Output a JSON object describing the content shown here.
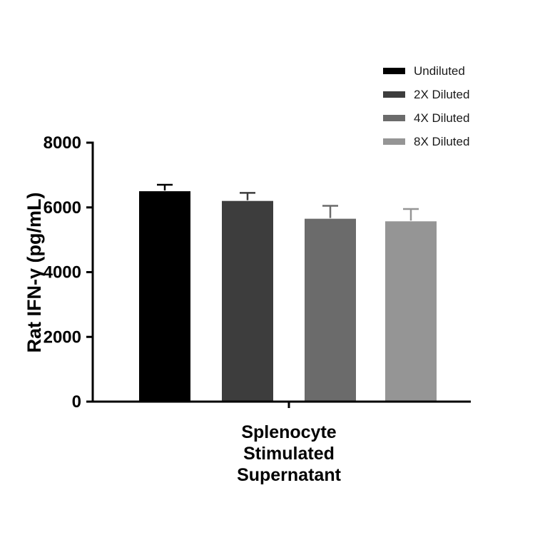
{
  "legend": {
    "items": [
      {
        "label": "Undiluted",
        "color": "#000000"
      },
      {
        "label": "2X Diluted",
        "color": "#3d3d3d"
      },
      {
        "label": "4X Diluted",
        "color": "#6b6b6b"
      },
      {
        "label": "8X Diluted",
        "color": "#959595"
      }
    ]
  },
  "chart_data": {
    "type": "bar",
    "title": "",
    "ylabel": "Rat IFN-γ (pg/mL)",
    "xlabel": "Splenocyte Stimulated Supernatant",
    "group_label_lines": [
      "Splenocyte",
      "Stimulated",
      "Supernatant"
    ],
    "ylim": [
      0,
      8000
    ],
    "yticks": [
      0,
      2000,
      4000,
      6000,
      8000
    ],
    "grid": false,
    "legend_position": "top-right",
    "series": [
      {
        "name": "Undiluted",
        "value": 6500,
        "error_high": 6700,
        "color": "#000000"
      },
      {
        "name": "2X Diluted",
        "value": 6200,
        "error_high": 6450,
        "color": "#3d3d3d"
      },
      {
        "name": "4X Diluted",
        "value": 5650,
        "error_high": 6050,
        "color": "#6b6b6b"
      },
      {
        "name": "8X Diluted",
        "value": 5570,
        "error_high": 5950,
        "color": "#959595"
      }
    ]
  }
}
